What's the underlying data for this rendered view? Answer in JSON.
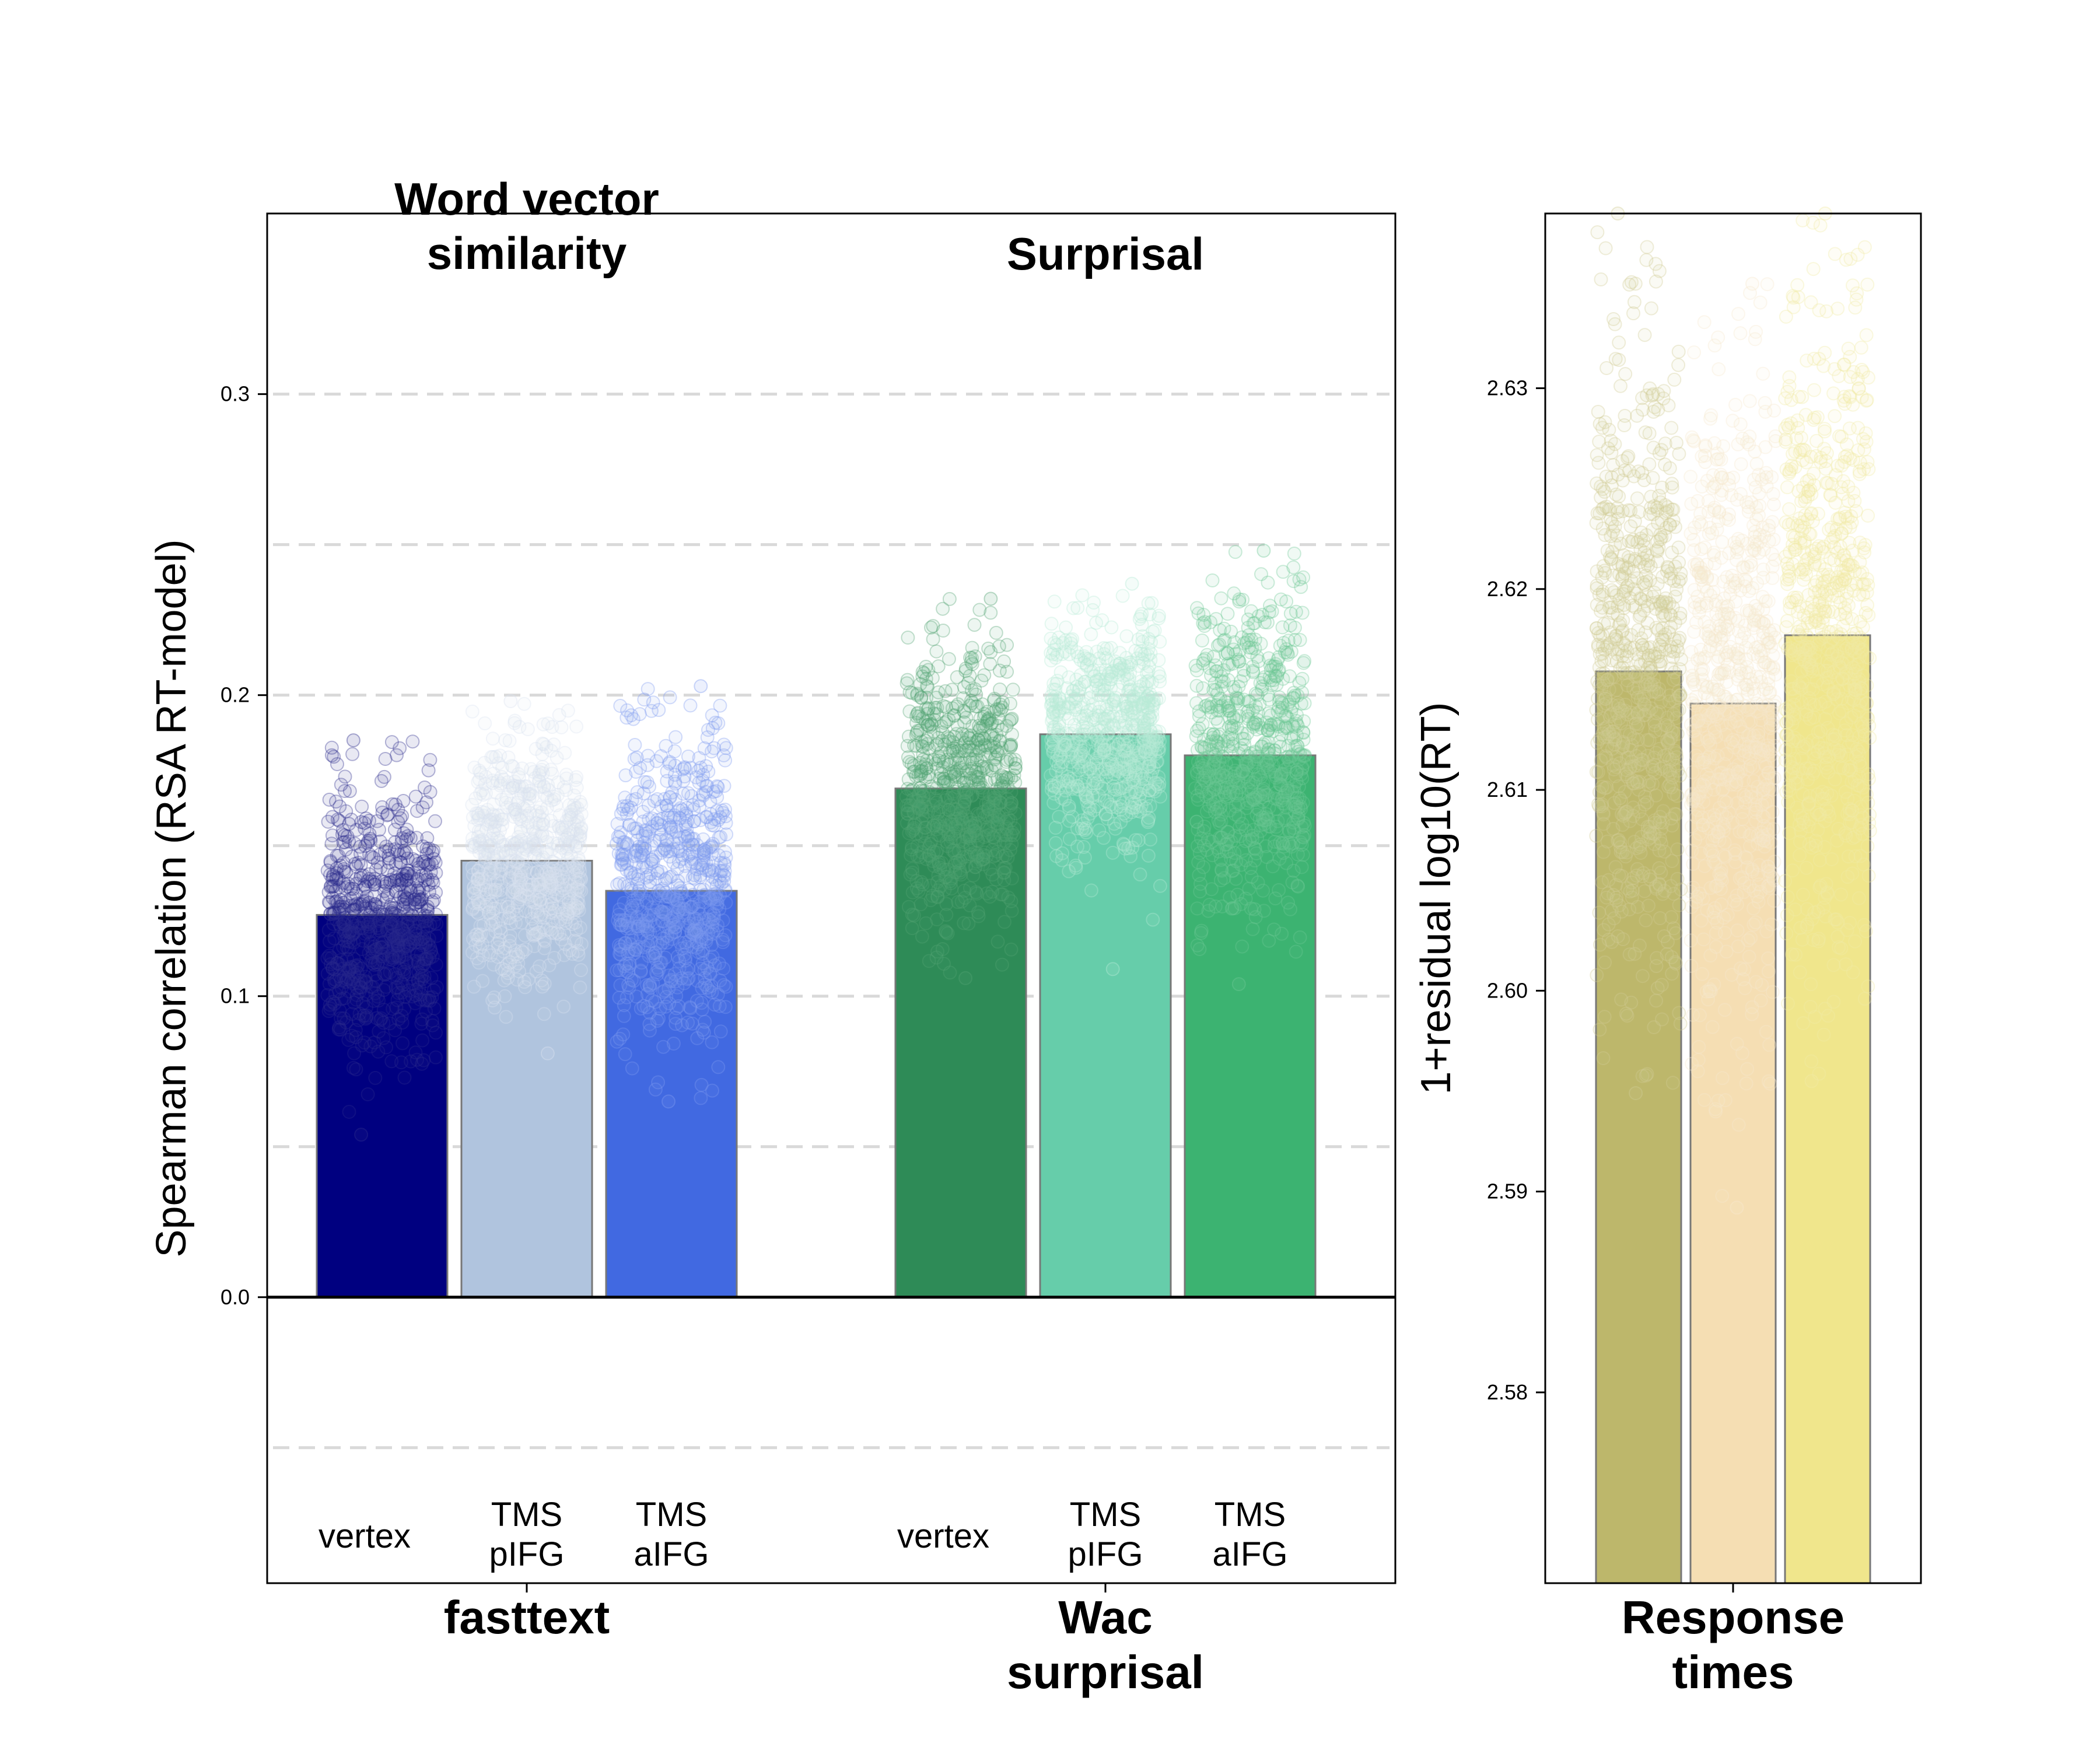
{
  "chart_data": [
    {
      "type": "bar",
      "ylabel": "Spearman correlation (RSA RT-model)",
      "ylim": [
        -0.095,
        0.36
      ],
      "yticks": [
        0.0,
        0.1,
        0.2,
        0.3
      ],
      "grid": "dashed horizontal every 0.05",
      "groups": [
        {
          "title": [
            "Word vector",
            "similarity"
          ],
          "xlabel": [
            "fasttext"
          ],
          "bars": [
            {
              "label": [
                "vertex"
              ],
              "value": 0.127,
              "color": "#000080",
              "dot_color": "#2c2c8c",
              "dot_min": 0.054,
              "dot_max": 0.185
            },
            {
              "label": [
                "TMS",
                "pIFG"
              ],
              "value": 0.145,
              "color": "#b0c4de",
              "dot_color": "#dbe3f0",
              "dot_min": 0.081,
              "dot_max": 0.198
            },
            {
              "label": [
                "TMS",
                "aIFG"
              ],
              "value": 0.135,
              "color": "#4169e1",
              "dot_color": "#7f9cf0",
              "dot_min": 0.065,
              "dot_max": 0.203
            }
          ]
        },
        {
          "title": [
            "Surprisal"
          ],
          "xlabel": [
            "Wac",
            "surprisal"
          ],
          "bars": [
            {
              "label": [
                "vertex"
              ],
              "value": 0.169,
              "color": "#2e8b57",
              "dot_color": "#52a374",
              "dot_min": 0.106,
              "dot_max": 0.232
            },
            {
              "label": [
                "TMS",
                "pIFG"
              ],
              "value": 0.187,
              "color": "#66cdaa",
              "dot_color": "#b6ecd6",
              "dot_min": 0.109,
              "dot_max": 0.237
            },
            {
              "label": [
                "TMS",
                "aIFG"
              ],
              "value": 0.18,
              "color": "#3cb371",
              "dot_color": "#6ec995",
              "dot_min": 0.104,
              "dot_max": 0.248
            }
          ]
        }
      ]
    },
    {
      "type": "bar",
      "ylabel": "1+residual log10(RT)",
      "ylim": [
        2.5705,
        2.6387
      ],
      "yticks": [
        2.58,
        2.59,
        2.6,
        2.61,
        2.62,
        2.63
      ],
      "xlabel": [
        "Response",
        "times"
      ],
      "bars": [
        {
          "value": 2.6159,
          "color": "#bdb76b",
          "dot_color": "#d0cc95",
          "dot_min": 2.5949,
          "dot_max": 2.6387
        },
        {
          "value": 2.6143,
          "color": "#f5deb3",
          "dot_color": "#f7e8cf",
          "dot_min": 2.5892,
          "dot_max": 2.6352
        },
        {
          "value": 2.6177,
          "color": "#f0e68c",
          "dot_color": "#f2eaa6",
          "dot_min": 2.5955,
          "dot_max": 2.6387
        }
      ]
    }
  ]
}
